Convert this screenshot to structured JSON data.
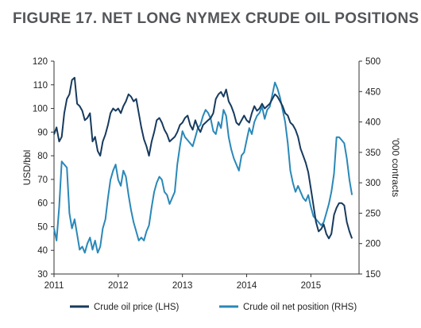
{
  "title": "FIGURE 17. NET LONG NYMEX CRUDE OIL POSITIONS",
  "colors": {
    "price": "#173a5e",
    "position": "#2a88b8",
    "axis": "#333333"
  },
  "chart_data": {
    "type": "line",
    "grid": false,
    "legend_position": "bottom",
    "x_axis": {
      "range": [
        2011.0,
        2015.75
      ],
      "ticks": [
        "2011",
        "2012",
        "2013",
        "2014",
        "2015"
      ]
    },
    "y_left": {
      "label": "USD/bbl",
      "range": [
        30,
        120
      ],
      "ticks": [
        "30",
        "40",
        "50",
        "60",
        "70",
        "80",
        "90",
        "100",
        "110",
        "120"
      ]
    },
    "y_right": {
      "label": "'000 contracts",
      "range": [
        150,
        500
      ],
      "ticks": [
        "150",
        "200",
        "250",
        "300",
        "350",
        "400",
        "450",
        "500"
      ]
    },
    "series": [
      {
        "name": "Crude oil price (LHS)",
        "axis": "left",
        "x": [
          2011.0,
          2011.04,
          2011.08,
          2011.12,
          2011.16,
          2011.2,
          2011.24,
          2011.28,
          2011.32,
          2011.36,
          2011.4,
          2011.44,
          2011.48,
          2011.52,
          2011.56,
          2011.6,
          2011.64,
          2011.68,
          2011.72,
          2011.76,
          2011.8,
          2011.84,
          2011.88,
          2011.92,
          2011.96,
          2012.0,
          2012.04,
          2012.08,
          2012.12,
          2012.16,
          2012.2,
          2012.24,
          2012.28,
          2012.32,
          2012.36,
          2012.4,
          2012.44,
          2012.48,
          2012.52,
          2012.56,
          2012.6,
          2012.64,
          2012.68,
          2012.72,
          2012.76,
          2012.8,
          2012.84,
          2012.88,
          2012.92,
          2012.96,
          2013.0,
          2013.04,
          2013.08,
          2013.12,
          2013.16,
          2013.2,
          2013.24,
          2013.28,
          2013.32,
          2013.36,
          2013.4,
          2013.44,
          2013.48,
          2013.52,
          2013.56,
          2013.6,
          2013.64,
          2013.68,
          2013.72,
          2013.76,
          2013.8,
          2013.84,
          2013.88,
          2013.92,
          2013.96,
          2014.0,
          2014.04,
          2014.08,
          2014.12,
          2014.16,
          2014.2,
          2014.24,
          2014.28,
          2014.32,
          2014.36,
          2014.4,
          2014.44,
          2014.48,
          2014.52,
          2014.56,
          2014.6,
          2014.64,
          2014.68,
          2014.72,
          2014.76,
          2014.8,
          2014.84,
          2014.88,
          2014.92,
          2014.96,
          2015.0,
          2015.04,
          2015.08,
          2015.12,
          2015.16,
          2015.2,
          2015.24,
          2015.28,
          2015.32,
          2015.36,
          2015.4,
          2015.44,
          2015.48,
          2015.52,
          2015.56,
          2015.6,
          2015.64
        ],
        "values": [
          89,
          92,
          86,
          88,
          98,
          104,
          106,
          112,
          113,
          102,
          101,
          99,
          95,
          96,
          98,
          86,
          88,
          82,
          80,
          86,
          89,
          93,
          98,
          100,
          99,
          100,
          98,
          101,
          103,
          106,
          105,
          103,
          104,
          98,
          92,
          87,
          84,
          80,
          86,
          90,
          95,
          96,
          94,
          91,
          89,
          86,
          87,
          88,
          90,
          93,
          94,
          96,
          97,
          93,
          91,
          95,
          92,
          90,
          93,
          94,
          95,
          96,
          98,
          104,
          106,
          107,
          105,
          108,
          103,
          101,
          98,
          94,
          93,
          95,
          97,
          95,
          94,
          98,
          101,
          99,
          100,
          102,
          100,
          101,
          102,
          104,
          106,
          105,
          103,
          101,
          98,
          97,
          94,
          93,
          91,
          88,
          83,
          80,
          77,
          73,
          66,
          59,
          52,
          48,
          49,
          51,
          47,
          45,
          47,
          55,
          58,
          60,
          60,
          59,
          52,
          48,
          45
        ]
      },
      {
        "name": "Crude oil net position (RHS)",
        "axis": "right",
        "x": [
          2011.0,
          2011.04,
          2011.08,
          2011.12,
          2011.16,
          2011.2,
          2011.24,
          2011.28,
          2011.32,
          2011.36,
          2011.4,
          2011.44,
          2011.48,
          2011.52,
          2011.56,
          2011.6,
          2011.64,
          2011.68,
          2011.72,
          2011.76,
          2011.8,
          2011.84,
          2011.88,
          2011.92,
          2011.96,
          2012.0,
          2012.04,
          2012.08,
          2012.12,
          2012.16,
          2012.2,
          2012.24,
          2012.28,
          2012.32,
          2012.36,
          2012.4,
          2012.44,
          2012.48,
          2012.52,
          2012.56,
          2012.6,
          2012.64,
          2012.68,
          2012.72,
          2012.76,
          2012.8,
          2012.84,
          2012.88,
          2012.92,
          2012.96,
          2013.0,
          2013.04,
          2013.08,
          2013.12,
          2013.16,
          2013.2,
          2013.24,
          2013.28,
          2013.32,
          2013.36,
          2013.4,
          2013.44,
          2013.48,
          2013.52,
          2013.56,
          2013.6,
          2013.64,
          2013.68,
          2013.72,
          2013.76,
          2013.8,
          2013.84,
          2013.88,
          2013.92,
          2013.96,
          2014.0,
          2014.04,
          2014.08,
          2014.12,
          2014.16,
          2014.2,
          2014.24,
          2014.28,
          2014.32,
          2014.36,
          2014.4,
          2014.44,
          2014.48,
          2014.52,
          2014.56,
          2014.6,
          2014.64,
          2014.68,
          2014.72,
          2014.76,
          2014.8,
          2014.84,
          2014.88,
          2014.92,
          2014.96,
          2015.0,
          2015.04,
          2015.08,
          2015.12,
          2015.16,
          2015.2,
          2015.24,
          2015.28,
          2015.32,
          2015.36,
          2015.4,
          2015.44,
          2015.48,
          2015.52,
          2015.56,
          2015.6,
          2015.64
        ],
        "values": [
          225,
          205,
          260,
          335,
          330,
          325,
          250,
          225,
          240,
          215,
          190,
          195,
          185,
          200,
          210,
          190,
          205,
          185,
          195,
          225,
          240,
          275,
          305,
          320,
          330,
          305,
          295,
          320,
          310,
          280,
          255,
          235,
          220,
          205,
          210,
          205,
          220,
          230,
          260,
          285,
          300,
          310,
          305,
          285,
          280,
          265,
          275,
          285,
          330,
          360,
          385,
          375,
          370,
          365,
          360,
          375,
          390,
          395,
          410,
          420,
          415,
          405,
          385,
          380,
          400,
          390,
          420,
          410,
          375,
          355,
          340,
          330,
          320,
          345,
          350,
          370,
          390,
          380,
          400,
          410,
          415,
          425,
          405,
          420,
          425,
          445,
          465,
          455,
          440,
          420,
          400,
          365,
          320,
          300,
          285,
          295,
          285,
          275,
          270,
          280,
          260,
          245,
          240,
          235,
          230,
          235,
          250,
          265,
          285,
          315,
          375,
          375,
          370,
          365,
          340,
          305,
          280
        ]
      }
    ]
  }
}
